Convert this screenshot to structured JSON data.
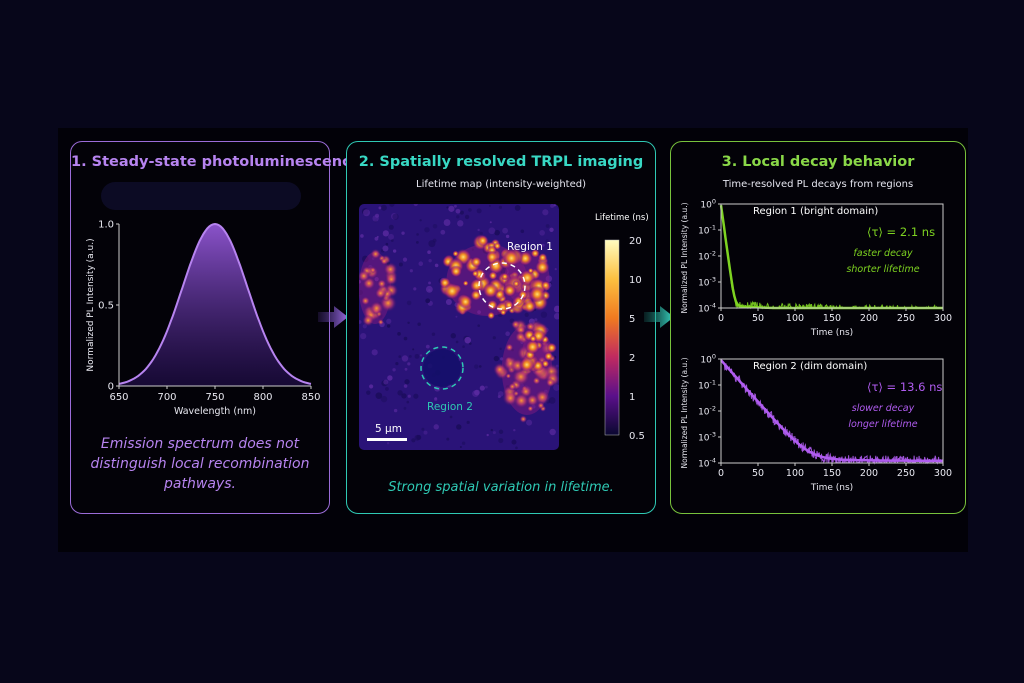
{
  "panel1": {
    "title": "1. Steady-state photoluminescence",
    "caption": "Emission spectrum does not distinguish local recombination pathways."
  },
  "panel2": {
    "title": "2. Spatially resolved TRPL imaging",
    "subtitle": "Lifetime map (intensity-weighted)",
    "colorbar_title": "Lifetime (ns)",
    "colorbar_ticks": [
      "20",
      "10",
      "5",
      "2",
      "1",
      "0.5"
    ],
    "region1_label": "Region 1",
    "region2_label": "Region 2",
    "scalebar_label": "5 μm",
    "caption": "Strong spatial variation in lifetime.",
    "colors": {
      "region1": "#ffffff",
      "region2": "#2fc9b4"
    }
  },
  "panel3": {
    "title": "3. Local decay behavior",
    "subtitle": "Time-resolved PL decays from regions",
    "region1": {
      "label": "Region 1 (bright domain)",
      "tau": "⟨τ⟩ = 2.1 ns",
      "note1": "faster decay",
      "note2": "shorter lifetime",
      "color": "#7ed321"
    },
    "region2": {
      "label": "Region 2 (dim domain)",
      "tau": "⟨τ⟩ = 13.6 ns",
      "note1": "slower decay",
      "note2": "longer lifetime",
      "color": "#b05cf0"
    }
  },
  "chart_data": [
    {
      "type": "line",
      "title": "",
      "xlabel": "Wavelength (nm)",
      "ylabel": "Normalized PL Intensity (a.u.)",
      "xlim": [
        650,
        850
      ],
      "ylim": [
        0,
        1.0
      ],
      "xticks": [
        650,
        700,
        750,
        800,
        850
      ],
      "yticks": [
        "0",
        "0.5",
        "1.0"
      ],
      "series": [
        {
          "peak_x": 750,
          "fwhm": 80,
          "color": "#b784f0"
        }
      ],
      "x": [
        650,
        675,
        700,
        725,
        750,
        775,
        800,
        825,
        850
      ],
      "y": [
        0.04,
        0.21,
        0.5,
        0.83,
        1.0,
        0.83,
        0.5,
        0.21,
        0.04
      ]
    },
    {
      "type": "line",
      "xlabel": "Time (ns)",
      "ylabel": "Normalized PL Intensity (a.u.)",
      "xlim": [
        0,
        300
      ],
      "ylim": [
        0.0001,
        1
      ],
      "yscale": "log",
      "xticks": [
        0,
        50,
        100,
        150,
        200,
        250,
        300
      ],
      "series": [
        {
          "name": "Region 1 (bright domain)",
          "tau_ns": 2.1,
          "floor": 8e-05,
          "color": "#7ed321"
        }
      ]
    },
    {
      "type": "line",
      "xlabel": "Time (ns)",
      "ylabel": "Normalized PL Intensity (a.u.)",
      "xlim": [
        0,
        300
      ],
      "ylim": [
        0.0001,
        1
      ],
      "yscale": "log",
      "xticks": [
        0,
        50,
        100,
        150,
        200,
        250,
        300
      ],
      "series": [
        {
          "name": "Region 2 (dim domain)",
          "tau_ns": 13.6,
          "floor": 0.00012,
          "color": "#b05cf0"
        }
      ]
    }
  ]
}
